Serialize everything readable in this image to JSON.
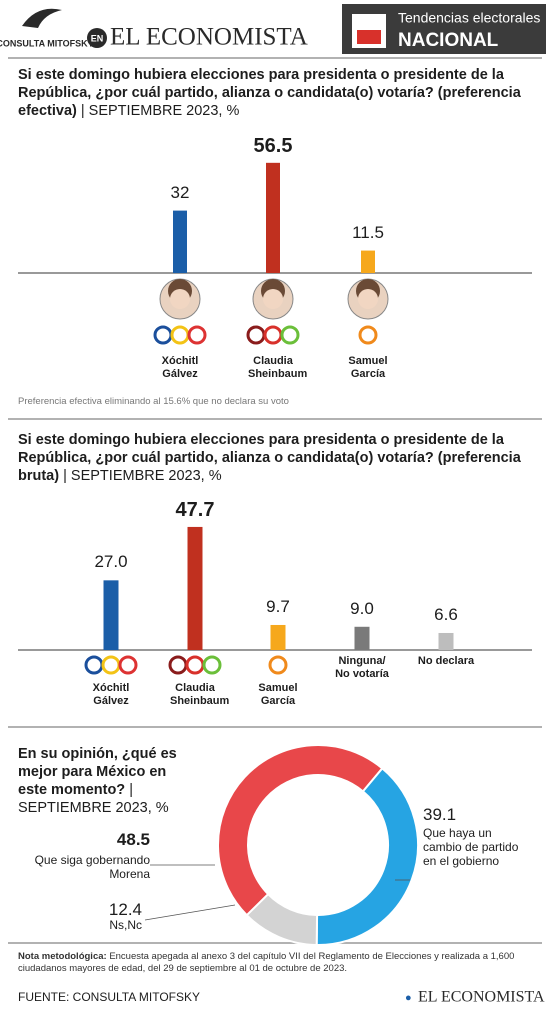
{
  "header": {
    "source_logo": "CONSULTA MITOFSKY",
    "en": "EN",
    "brand": "EL ECONOMISTA",
    "section": "Tendencias electorales",
    "scope": "NACIONAL"
  },
  "chart_data": [
    {
      "type": "bar",
      "title": "Si este domingo hubiera elecciones para presidenta o presidente de la República, ¿por cuál partido, alianza o candidata(o) votaría? (preferencia efectiva)",
      "subtitle": "| SEPTIEMBRE 2023, %",
      "categories": [
        "Xóchitl Gálvez",
        "Claudia Sheinbaum",
        "Samuel García"
      ],
      "values": [
        32,
        56.5,
        11.5
      ],
      "colors": [
        "#1b5ea8",
        "#c0301f",
        "#f6a81c"
      ],
      "note": "Preferencia efectiva eliminando al 15.6% que no declara su voto"
    },
    {
      "type": "bar",
      "title": "Si este domingo hubiera elecciones para presidenta o presidente de la República, ¿por cuál partido, alianza o candidata(o) votaría? (preferencia bruta)",
      "subtitle": "| SEPTIEMBRE 2023, %",
      "categories": [
        "Xóchitl Gálvez",
        "Claudia Sheinbaum",
        "Samuel García",
        "Ninguna/ No votaría",
        "No declara"
      ],
      "values": [
        27.0,
        47.7,
        9.7,
        9.0,
        6.6
      ],
      "value_labels": [
        "27.0",
        "47.7",
        "9.7",
        "9.0",
        "6.6"
      ],
      "colors": [
        "#1b5ea8",
        "#c0301f",
        "#f6a81c",
        "#7a7a7a",
        "#bdbdbd"
      ]
    },
    {
      "type": "pie",
      "title": "En su opinión, ¿qué es mejor para México en este momento?",
      "subtitle": "| SEPTIEMBRE 2023, %",
      "categories": [
        "Que siga gobernando Morena",
        "Que haya un cambio de partido en el gobierno",
        "Ns,Nc"
      ],
      "values": [
        48.5,
        39.1,
        12.4
      ],
      "colors": [
        "#e8474a",
        "#26a4e3",
        "#d3d3d3"
      ]
    }
  ],
  "footer": {
    "note_label": "Nota metodológica:",
    "note": "Encuesta apegada al anexo 3 del capítulo VII del Reglamento de Elecciones y realizada a 1,600 ciudadanos mayores de edad, del 29 de septiembre al 01 de octubre de 2023.",
    "source": "FUENTE: CONSULTA MITOFSKY",
    "brand": "EL ECONOMISTA"
  }
}
